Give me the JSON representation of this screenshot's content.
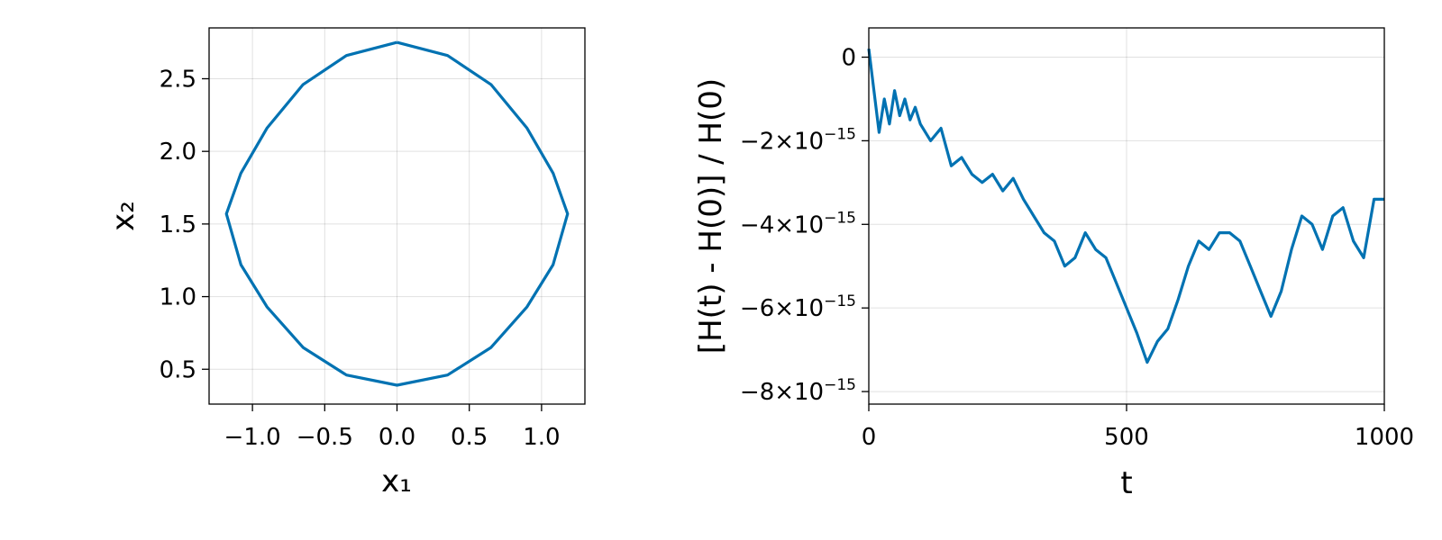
{
  "chart_data": [
    {
      "type": "line",
      "panel": "left",
      "title": "",
      "xlabel": "x₁",
      "ylabel": "x₂",
      "xlim": [
        -1.3,
        1.3
      ],
      "ylim": [
        0.26,
        2.85
      ],
      "xticks": [
        -1.0,
        -0.5,
        0.0,
        0.5,
        1.0
      ],
      "xtick_labels": [
        "−1.0",
        "−0.5",
        "0.0",
        "0.5",
        "1.0"
      ],
      "yticks": [
        0.5,
        1.0,
        1.5,
        2.0,
        2.5
      ],
      "ytick_labels": [
        "0.5",
        "1.0",
        "1.5",
        "2.0",
        "2.5"
      ],
      "grid": true,
      "legend": "none",
      "color": "#0072b2",
      "series": [
        {
          "x": [
            0.0,
            0.35,
            0.65,
            0.9,
            1.08,
            1.18,
            1.08,
            0.9,
            0.65,
            0.35,
            0.0,
            -0.35,
            -0.65,
            -0.9,
            -1.08,
            -1.18,
            -1.08,
            -0.9,
            -0.65,
            -0.35,
            0.0
          ],
          "y": [
            2.75,
            2.66,
            2.46,
            2.16,
            1.85,
            1.57,
            1.22,
            0.93,
            0.65,
            0.46,
            0.39,
            0.46,
            0.65,
            0.93,
            1.22,
            1.57,
            1.85,
            2.16,
            2.46,
            2.66,
            2.75
          ]
        }
      ]
    },
    {
      "type": "line",
      "panel": "right",
      "title": "",
      "xlabel": "t",
      "ylabel": "[H(t) - H(0)] / H(0)",
      "xlim": [
        0,
        1000
      ],
      "ylim": [
        -8.3e-15,
        7e-16
      ],
      "xticks": [
        0,
        500,
        1000
      ],
      "xtick_labels": [
        "0",
        "500",
        "1000"
      ],
      "yticks": [
        0,
        -2e-15,
        -4e-15,
        -6e-15,
        -8e-15
      ],
      "ytick_labels": [
        {
          "mantissa": "0",
          "exp": ""
        },
        {
          "mantissa": "−2×10",
          "exp": "−15"
        },
        {
          "mantissa": "−4×10",
          "exp": "−15"
        },
        {
          "mantissa": "−6×10",
          "exp": "−15"
        },
        {
          "mantissa": "−8×10",
          "exp": "−15"
        }
      ],
      "grid": true,
      "legend": "none",
      "color": "#0072b2",
      "series": [
        {
          "x": [
            0,
            10,
            20,
            30,
            40,
            50,
            60,
            70,
            80,
            90,
            100,
            120,
            140,
            160,
            180,
            200,
            220,
            240,
            260,
            280,
            300,
            320,
            340,
            360,
            380,
            400,
            420,
            440,
            460,
            480,
            500,
            520,
            540,
            560,
            580,
            600,
            620,
            640,
            660,
            680,
            700,
            720,
            740,
            760,
            780,
            800,
            820,
            840,
            860,
            880,
            900,
            920,
            940,
            960,
            980,
            1000
          ],
          "y": [
            0.2,
            -0.8,
            -1.8,
            -1.0,
            -1.6,
            -0.8,
            -1.4,
            -1.0,
            -1.5,
            -1.2,
            -1.6,
            -2.0,
            -1.7,
            -2.6,
            -2.4,
            -2.8,
            -3.0,
            -2.8,
            -3.2,
            -2.9,
            -3.4,
            -3.8,
            -4.2,
            -4.4,
            -5.0,
            -4.8,
            -4.2,
            -4.6,
            -4.8,
            -5.4,
            -6.0,
            -6.6,
            -7.3,
            -6.8,
            -6.5,
            -5.8,
            -5.0,
            -4.4,
            -4.6,
            -4.2,
            -4.2,
            -4.4,
            -5.0,
            -5.6,
            -6.2,
            -5.6,
            -4.6,
            -3.8,
            -4.0,
            -4.6,
            -3.8,
            -3.6,
            -4.4,
            -4.8,
            -3.4,
            -3.4
          ]
        }
      ]
    }
  ]
}
